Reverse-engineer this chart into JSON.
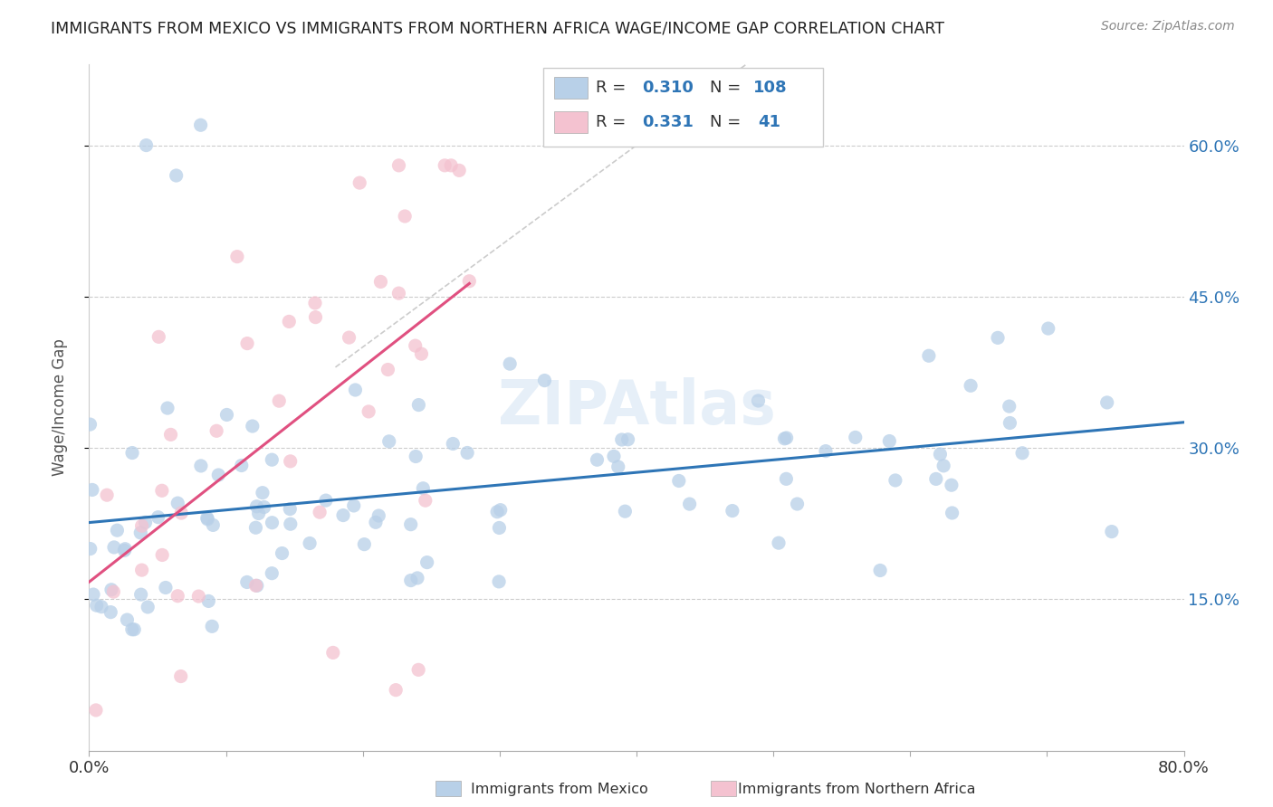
{
  "title": "IMMIGRANTS FROM MEXICO VS IMMIGRANTS FROM NORTHERN AFRICA WAGE/INCOME GAP CORRELATION CHART",
  "source": "Source: ZipAtlas.com",
  "ylabel": "Wage/Income Gap",
  "x_min": 0.0,
  "x_max": 0.8,
  "y_min": 0.0,
  "y_max": 0.68,
  "y_ticks": [
    0.15,
    0.3,
    0.45,
    0.6
  ],
  "y_tick_labels": [
    "15.0%",
    "30.0%",
    "45.0%",
    "60.0%"
  ],
  "color_mexico": "#b8d0e8",
  "color_mexico_line": "#2e75b6",
  "color_africa": "#f4c2d0",
  "color_africa_line": "#e05080",
  "color_africa_dashed": "#e8a0b8",
  "watermark": "ZIPAtlas"
}
